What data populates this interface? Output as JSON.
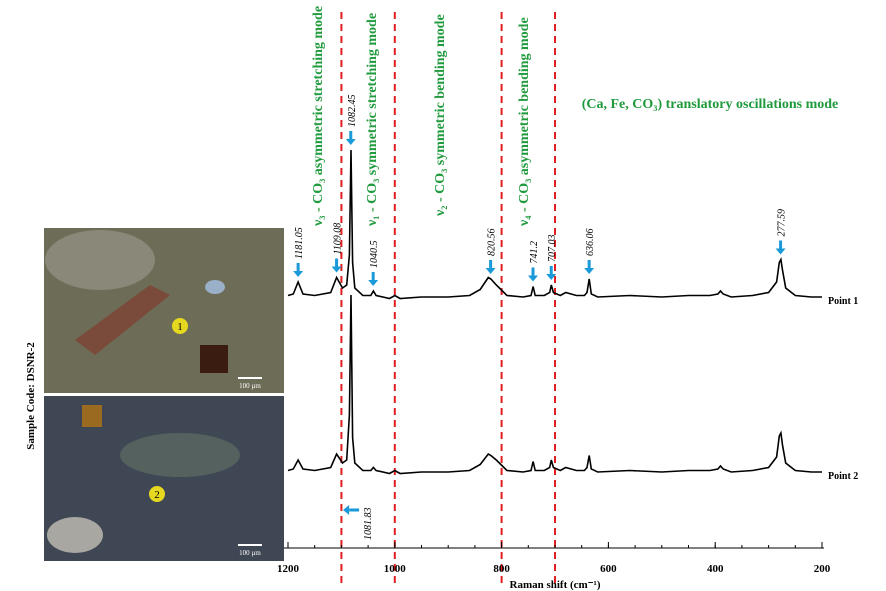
{
  "sample_code": "Sample Code: DSNR-2",
  "micrographs": [
    {
      "label": "1",
      "scale": "100 µm"
    },
    {
      "label": "2",
      "scale": "100 µm"
    }
  ],
  "chart_data": {
    "type": "line",
    "xlabel": "Raman shift (cm⁻¹)",
    "xlim": [
      1200,
      200
    ],
    "xticks": [
      1200,
      1000,
      800,
      600,
      400,
      200
    ],
    "ylim": [
      0,
      100
    ],
    "x": [
      1200,
      1190,
      1181,
      1172,
      1150,
      1120,
      1109,
      1098,
      1090,
      1085,
      1082,
      1079,
      1075,
      1060,
      1045,
      1040,
      1035,
      1010,
      1000,
      990,
      950,
      900,
      860,
      840,
      825,
      820,
      810,
      790,
      760,
      745,
      741,
      737,
      720,
      710,
      707,
      703,
      690,
      680,
      660,
      645,
      640,
      636,
      632,
      620,
      560,
      500,
      450,
      410,
      395,
      390,
      385,
      370,
      330,
      300,
      285,
      280,
      277,
      274,
      268,
      250,
      220,
      200
    ],
    "series": [
      {
        "name": "Point 1",
        "color": "#000000",
        "values": [
          3,
          4,
          12,
          4,
          3,
          5,
          15,
          8,
          10,
          30,
          100,
          25,
          8,
          3,
          3,
          6,
          3,
          1,
          3,
          1,
          2,
          2,
          3,
          7,
          15,
          14,
          10,
          3,
          2,
          3,
          9,
          3,
          3,
          5,
          10,
          5,
          3,
          5,
          3,
          3,
          5,
          14,
          4,
          2,
          3,
          2,
          3,
          3,
          4,
          6,
          4,
          2,
          3,
          5,
          12,
          25,
          27,
          20,
          8,
          3,
          2,
          2
        ]
      },
      {
        "name": "Point 2",
        "color": "#000000",
        "values": [
          3,
          4,
          10,
          4,
          3,
          5,
          14,
          8,
          10,
          40,
          120,
          25,
          8,
          3,
          3,
          5,
          3,
          1,
          3,
          1,
          2,
          2,
          3,
          7,
          14,
          13,
          10,
          3,
          2,
          3,
          9,
          3,
          3,
          5,
          10,
          5,
          3,
          5,
          3,
          3,
          5,
          13,
          4,
          2,
          3,
          2,
          3,
          3,
          4,
          6,
          4,
          2,
          3,
          5,
          12,
          26,
          28,
          20,
          8,
          3,
          2,
          2
        ]
      }
    ],
    "peak_labels": [
      1181.05,
      1109.08,
      1082.45,
      1040.5,
      820.56,
      741.2,
      707.03,
      636.06,
      277.59
    ],
    "bottom_peak_label": 1081.83,
    "region_lines": [
      1100,
      1000,
      800,
      700
    ],
    "modes": [
      "ν₃ - CO₃ asymmetric stretching mode",
      "ν₁ - CO₃ symmetric stretching mode",
      "ν₂ - CO₃ symmetric bending mode",
      "ν₄ - CO₃ asymmetric bending mode",
      "(Ca, Fe, CO₃) translatory oscillations mode"
    ]
  }
}
